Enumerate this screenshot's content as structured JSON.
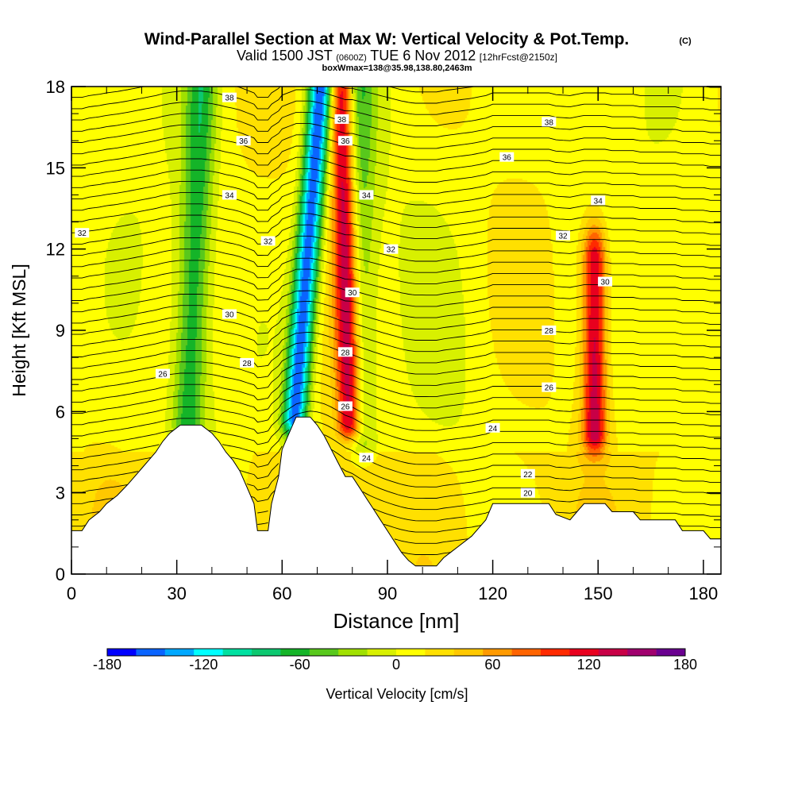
{
  "header": {
    "title": "Wind-Parallel Section at Max W: Vertical Velocity & Pot.Temp.",
    "copyright": "(C)",
    "valid_prefix": "Valid 1500 JST",
    "valid_utc": "(0600Z)",
    "valid_date": "TUE 6 Nov 2012",
    "forecast": "[12hrFcst@2150z]",
    "box_info": "boxWmax=138@35.98,138.80,2463m"
  },
  "chart_data": {
    "type": "heatmap",
    "xlabel": "Distance [nm]",
    "ylabel": "Height [Kft MSL]",
    "xlim": [
      0,
      185
    ],
    "ylim": [
      0,
      18
    ],
    "x_ticks": [
      0,
      30,
      60,
      90,
      120,
      150,
      180
    ],
    "y_ticks": [
      0,
      3,
      6,
      9,
      12,
      15,
      18
    ],
    "colorbar": {
      "label": "Vertical Velocity [cm/s]",
      "range": [
        -180,
        180
      ],
      "tick_labels": [
        -180,
        -120,
        -60,
        0,
        60,
        120,
        180
      ],
      "colors": [
        "#0000ff",
        "#0a64ff",
        "#00a8ff",
        "#00ffff",
        "#00e0a0",
        "#0cc870",
        "#14b428",
        "#58c81c",
        "#a0e000",
        "#d8f000",
        "#ffff00",
        "#ffe000",
        "#ffc800",
        "#ff9a00",
        "#ff6400",
        "#ff2a00",
        "#e8001e",
        "#c80046",
        "#a0006e",
        "#6a0090"
      ]
    },
    "terrain_kft": [
      [
        0,
        1.6
      ],
      [
        3,
        1.6
      ],
      [
        5,
        2.0
      ],
      [
        8,
        2.3
      ],
      [
        10,
        2.6
      ],
      [
        13,
        2.9
      ],
      [
        16,
        3.3
      ],
      [
        18,
        3.6
      ],
      [
        20,
        3.9
      ],
      [
        22,
        4.2
      ],
      [
        24,
        4.5
      ],
      [
        26,
        4.9
      ],
      [
        28,
        5.2
      ],
      [
        31,
        5.5
      ],
      [
        34,
        5.5
      ],
      [
        37,
        5.5
      ],
      [
        40,
        5.2
      ],
      [
        42,
        4.9
      ],
      [
        44,
        4.5
      ],
      [
        46,
        4.2
      ],
      [
        48,
        3.8
      ],
      [
        50,
        3.2
      ],
      [
        52,
        2.6
      ],
      [
        53,
        1.6
      ],
      [
        56,
        1.6
      ],
      [
        57,
        2.6
      ],
      [
        59,
        3.6
      ],
      [
        60,
        4.6
      ],
      [
        62,
        5.2
      ],
      [
        64,
        5.8
      ],
      [
        68,
        5.8
      ],
      [
        70,
        5.5
      ],
      [
        72,
        5.1
      ],
      [
        74,
        4.6
      ],
      [
        76,
        4.1
      ],
      [
        78,
        3.6
      ],
      [
        80,
        3.6
      ],
      [
        82,
        3.2
      ],
      [
        84,
        2.8
      ],
      [
        86,
        2.4
      ],
      [
        88,
        2.0
      ],
      [
        90,
        1.6
      ],
      [
        92,
        1.2
      ],
      [
        94,
        0.8
      ],
      [
        96,
        0.5
      ],
      [
        98,
        0.3
      ],
      [
        104,
        0.3
      ],
      [
        106,
        0.6
      ],
      [
        108,
        0.8
      ],
      [
        110,
        1.0
      ],
      [
        114,
        1.4
      ],
      [
        118,
        2.0
      ],
      [
        120,
        2.6
      ],
      [
        136,
        2.6
      ],
      [
        138,
        2.2
      ],
      [
        142,
        2.0
      ],
      [
        144,
        2.3
      ],
      [
        146,
        2.6
      ],
      [
        152,
        2.6
      ],
      [
        154,
        2.3
      ],
      [
        160,
        2.3
      ],
      [
        162,
        2.0
      ],
      [
        172,
        2.0
      ],
      [
        174,
        1.6
      ],
      [
        180,
        1.6
      ],
      [
        182,
        1.3
      ],
      [
        185,
        1.3
      ]
    ],
    "theta_contours": [
      {
        "value": 20,
        "label_at": [
          130,
          3.0
        ]
      },
      {
        "value": 22,
        "label_at": [
          130,
          3.7
        ]
      },
      {
        "value": 24,
        "label_at": [
          84,
          4.3
        ]
      },
      {
        "value": 24,
        "label_at": [
          120,
          5.4
        ]
      },
      {
        "value": 26,
        "label_at": [
          26,
          7.4
        ]
      },
      {
        "value": 26,
        "label_at": [
          78,
          6.2
        ]
      },
      {
        "value": 26,
        "label_at": [
          136,
          6.9
        ]
      },
      {
        "value": 28,
        "label_at": [
          50,
          7.8
        ]
      },
      {
        "value": 28,
        "label_at": [
          78,
          8.2
        ]
      },
      {
        "value": 28,
        "label_at": [
          136,
          9.0
        ]
      },
      {
        "value": 30,
        "label_at": [
          45,
          9.6
        ]
      },
      {
        "value": 30,
        "label_at": [
          80,
          10.4
        ]
      },
      {
        "value": 30,
        "label_at": [
          152,
          10.8
        ]
      },
      {
        "value": 32,
        "label_at": [
          3,
          12.6
        ]
      },
      {
        "value": 32,
        "label_at": [
          56,
          12.3
        ]
      },
      {
        "value": 32,
        "label_at": [
          91,
          12.0
        ]
      },
      {
        "value": 32,
        "label_at": [
          140,
          12.5
        ]
      },
      {
        "value": 34,
        "label_at": [
          45,
          14.0
        ]
      },
      {
        "value": 34,
        "label_at": [
          84,
          14.0
        ]
      },
      {
        "value": 34,
        "label_at": [
          150,
          13.8
        ]
      },
      {
        "value": 36,
        "label_at": [
          49,
          16.0
        ]
      },
      {
        "value": 36,
        "label_at": [
          78,
          16.0
        ]
      },
      {
        "value": 36,
        "label_at": [
          124,
          15.4
        ]
      },
      {
        "value": 38,
        "label_at": [
          45,
          17.6
        ]
      },
      {
        "value": 38,
        "label_at": [
          77,
          16.8
        ]
      },
      {
        "value": 38,
        "label_at": [
          136,
          16.7
        ]
      }
    ],
    "vertical_velocity_features": [
      {
        "name": "main updraft",
        "x": 77,
        "top_y": 18,
        "bottom_y": 5.6,
        "peak_cms": 138,
        "tilt_nm_per_kft": -0.18
      },
      {
        "name": "main downdraft",
        "x": 71,
        "top_y": 18,
        "bottom_y": 5.8,
        "peak_cms": -170,
        "tilt_nm_per_kft": 0.6
      },
      {
        "name": "secondary updraft",
        "x": 149,
        "top_y": 11.5,
        "bottom_y": 5.2,
        "peak_cms": 125,
        "tilt_nm_per_kft": 0.0
      },
      {
        "name": "western downdraft",
        "x": 37,
        "top_y": 18,
        "bottom_y": 5.6,
        "peak_cms": -75,
        "tilt_nm_per_kft": 0.3
      },
      {
        "name": "downdraft east of updraft",
        "x": 82,
        "top_y": 18,
        "bottom_y": 5.0,
        "peak_cms": -55,
        "tilt_nm_per_kft": 0.0
      }
    ]
  }
}
